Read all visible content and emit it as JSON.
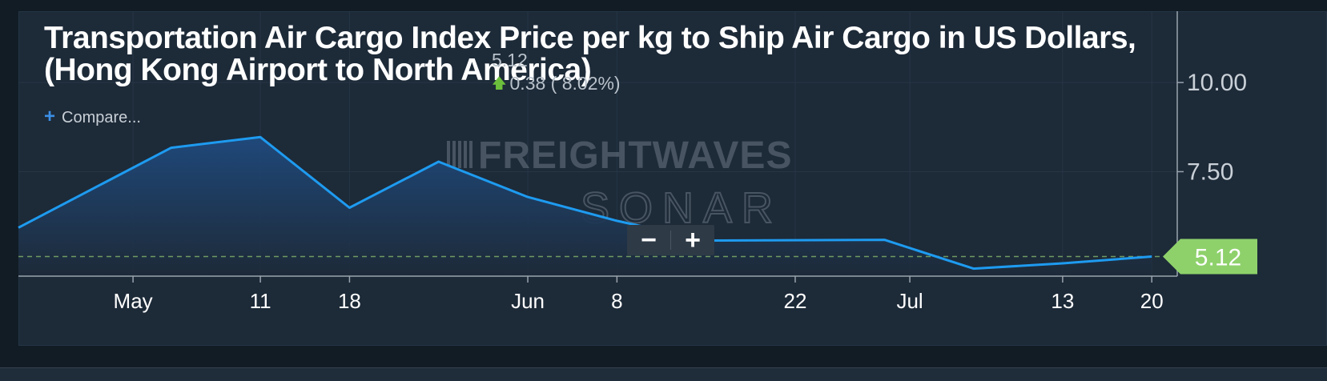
{
  "header": {
    "title": "Transportation Air Cargo Index Price per kg to Ship Air Cargo in US Dollars, (Hong Kong Airport to North America)",
    "last_value": "5.12",
    "change": "0.38 ( 8.02%)",
    "change_direction": "up"
  },
  "compare": {
    "label": "Compare..."
  },
  "watermark": {
    "brand": "FREIGHTWAVES",
    "product": "SONAR"
  },
  "zoom": {
    "minus_label": "−",
    "plus_label": "+"
  },
  "colors": {
    "line": "#1e9bf0",
    "area_top": "#1f4a7e",
    "area_bottom": "#1d2a38",
    "last_value_tag": "#8ed16b",
    "dashed_baseline": "#6f9a62",
    "axis": "#9aa4ae",
    "up_arrow": "#6cbf3c"
  },
  "chart_data": {
    "type": "area",
    "title": "Transportation Air Cargo Index Price per kg to Ship Air Cargo in US Dollars, (Hong Kong Airport to North America)",
    "xlabel": "",
    "ylabel": "",
    "x_axis_type": "date",
    "x_range": [
      "2019-04-22",
      "2019-07-22"
    ],
    "ylim": [
      4.57,
      12.0
    ],
    "y_ticks": [
      {
        "value": 7.5,
        "label": "7.50"
      },
      {
        "value": 10.0,
        "label": "10.00"
      }
    ],
    "x_ticks": [
      {
        "date": "2019-05-01",
        "label": "May"
      },
      {
        "date": "2019-05-11",
        "label": "11"
      },
      {
        "date": "2019-05-18",
        "label": "18"
      },
      {
        "date": "2019-06-01",
        "label": "Jun"
      },
      {
        "date": "2019-06-08",
        "label": "8"
      },
      {
        "date": "2019-06-22",
        "label": "22"
      },
      {
        "date": "2019-07-01",
        "label": "Jul"
      },
      {
        "date": "2019-07-13",
        "label": "13"
      },
      {
        "date": "2019-07-20",
        "label": "20"
      }
    ],
    "series": [
      {
        "points": [
          {
            "date": "2019-04-22",
            "value": 5.93
          },
          {
            "date": "2019-05-04",
            "value": 8.17
          },
          {
            "date": "2019-05-11",
            "value": 8.47
          },
          {
            "date": "2019-05-18",
            "value": 6.49
          },
          {
            "date": "2019-05-25",
            "value": 7.78
          },
          {
            "date": "2019-06-01",
            "value": 6.79
          },
          {
            "date": "2019-06-08",
            "value": 6.12
          },
          {
            "date": "2019-06-15",
            "value": 5.57
          },
          {
            "date": "2019-06-29",
            "value": 5.59
          },
          {
            "date": "2019-07-06",
            "value": 4.78
          },
          {
            "date": "2019-07-13",
            "value": 4.93
          },
          {
            "date": "2019-07-20",
            "value": 5.12
          }
        ]
      }
    ],
    "last_value_label": "5.12",
    "grid": true,
    "legend": "none"
  }
}
